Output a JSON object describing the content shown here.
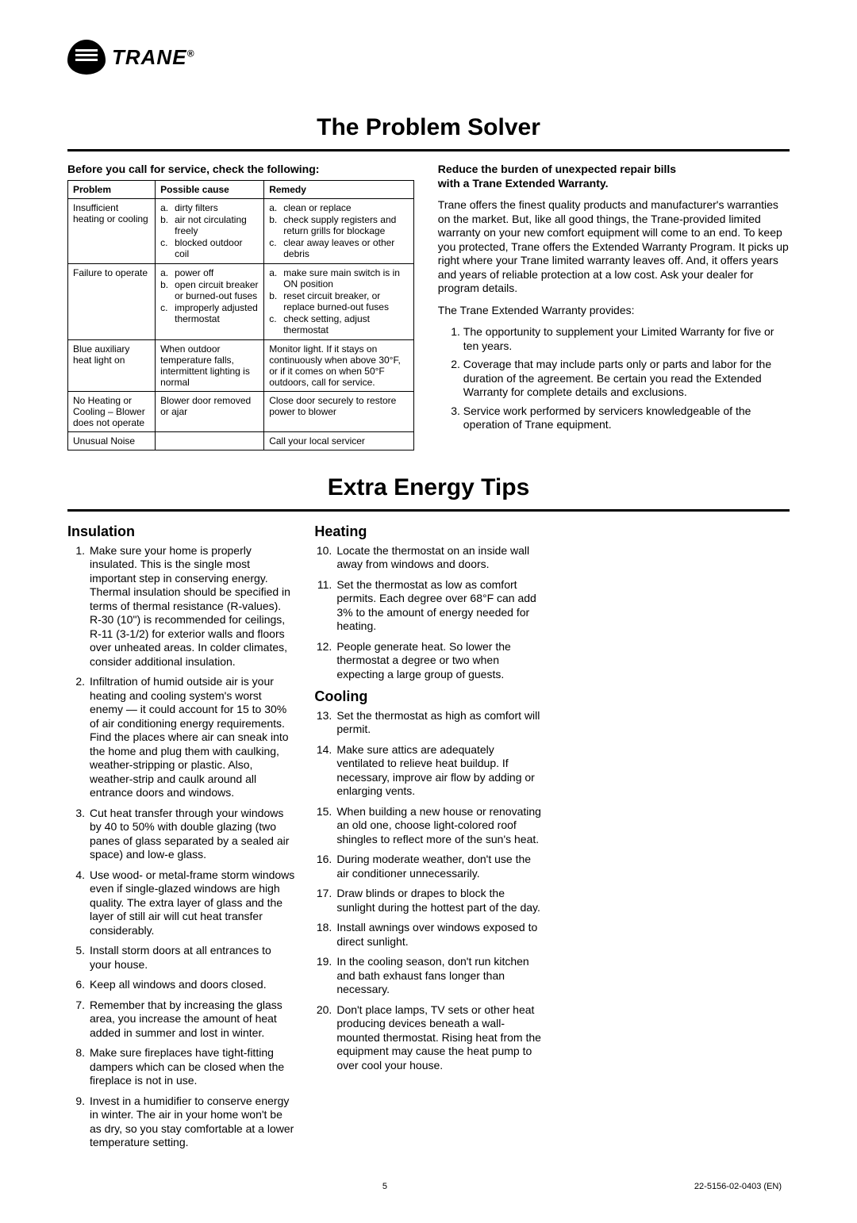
{
  "logo": {
    "brand": "TRANE",
    "reg": "®"
  },
  "section1_title": "The Problem Solver",
  "left_heading": "Before you call for service, check the following:",
  "table": {
    "headers": [
      "Problem",
      "Possible cause",
      "Remedy"
    ],
    "rows": [
      {
        "problem": "Insufficient heating or cooling",
        "cause": [
          [
            "a.",
            "dirty filters"
          ],
          [
            "b.",
            "air not circulating freely"
          ],
          [
            "c.",
            "blocked outdoor coil"
          ]
        ],
        "remedy": [
          [
            "a.",
            "clean or replace"
          ],
          [
            "b.",
            "check supply registers and return grills for blockage"
          ],
          [
            "c.",
            "clear away leaves or other debris"
          ]
        ]
      },
      {
        "problem": "Failure to operate",
        "cause": [
          [
            "a.",
            "power off"
          ],
          [
            "b.",
            "open circuit breaker or burned-out fuses"
          ],
          [
            "c.",
            "improperly adjusted thermostat"
          ]
        ],
        "remedy": [
          [
            "a.",
            "make sure main switch is in ON position"
          ],
          [
            "b.",
            "reset circuit breaker, or replace burned-out fuses"
          ],
          [
            "c.",
            "check setting, adjust thermostat"
          ]
        ]
      },
      {
        "problem": "Blue auxiliary heat light on",
        "cause_plain": "When outdoor temperature falls, intermittent lighting is normal",
        "remedy_plain": "Monitor light. If it stays on continuously when above 30°F, or if it comes on when 50°F outdoors, call for service."
      },
      {
        "problem": "No Heating or Cooling – Blower does not operate",
        "cause_plain": "Blower door removed or ajar",
        "remedy_plain": "Close door securely to restore power to blower"
      },
      {
        "problem": "Unusual Noise",
        "cause_plain": "",
        "remedy_plain": "Call your local servicer"
      }
    ]
  },
  "right_heading1": "Reduce the burden of unexpected repair bills",
  "right_heading2": "with a Trane Extended Warranty.",
  "warranty_p1": "Trane offers the finest quality products and manufacturer's warranties on the market. But, like all good things, the Trane-provided limited warranty on your new comfort equipment will come to an end. To keep you protected, Trane offers the Extended Warranty Program. It picks up right where your Trane limited warranty leaves off. And, it offers years and years of reliable protection at a low cost. Ask your dealer for program details.",
  "warranty_p2": "The Trane Extended Warranty provides:",
  "warranty_list": [
    "The opportunity to supplement your Limited Warranty for five or ten years.",
    "Coverage that may include parts only or parts and labor for the duration of the agreement. Be certain you read the Extended Warranty for complete details and exclusions.",
    "Service work performed by servicers knowledgeable of the operation of Trane equipment."
  ],
  "section2_title": "Extra Energy Tips",
  "tips": {
    "insulation_h": "Insulation",
    "heating_h": "Heating",
    "cooling_h": "Cooling",
    "items": [
      [
        1,
        "Make sure your home is properly insulated. This is the single most important step in conserving energy. Thermal insulation should be specified in terms of thermal resistance (R-values). R-30 (10\") is recommended for ceilings, R-11 (3-1/2) for exterior walls and floors over unheated areas. In colder climates, consider additional insulation."
      ],
      [
        2,
        "Infiltration of humid outside air is your heating and cooling system's worst enemy — it could account for 15 to 30% of air conditioning energy requirements. Find the places where air can sneak into the home and plug them with caulking, weather-stripping or plastic. Also, weather-strip and caulk around all entrance doors and windows."
      ],
      [
        3,
        "Cut heat transfer through your windows by 40 to 50% with double glazing (two panes of glass separated by a sealed air space) and low-e glass."
      ],
      [
        4,
        "Use wood- or metal-frame storm windows even if single-glazed windows are high quality. The extra layer of glass and the layer of still air will cut heat transfer considerably."
      ],
      [
        5,
        "Install storm doors at all entrances to your house."
      ],
      [
        6,
        "Keep all windows and doors closed."
      ],
      [
        7,
        "Remember that by increasing the glass area, you increase the amount of heat added in summer and lost in winter."
      ],
      [
        8,
        "Make sure fireplaces have tight-fitting dampers which can be closed when the fireplace is not in use."
      ],
      [
        9,
        "Invest in a humidifier to conserve energy in winter. The air in your home won't be as dry, so you stay comfortable at a lower temperature setting."
      ],
      [
        10,
        "Locate the thermostat on an inside wall away from windows and doors."
      ],
      [
        11,
        "Set the thermostat as low as comfort permits. Each degree over 68°F can add 3% to the amount of energy needed for heating."
      ],
      [
        12,
        "People generate heat. So lower the thermostat a degree or two when expecting a large group of guests."
      ],
      [
        13,
        "Set the thermostat as high as comfort will permit."
      ],
      [
        14,
        "Make sure attics are adequately ventilated to relieve heat buildup. If necessary, improve air flow by adding or enlarging vents."
      ],
      [
        15,
        "When building a new house or renovating an old one, choose light-colored roof shingles to reflect more of the sun's heat."
      ],
      [
        16,
        "During moderate weather, don't use the air conditioner unnecessarily."
      ],
      [
        17,
        "Draw blinds or drapes to block the sunlight during the hottest part of the day."
      ],
      [
        18,
        "Install awnings over windows exposed to direct sunlight."
      ],
      [
        19,
        "In the cooling season, don't run kitchen and bath exhaust fans longer than necessary."
      ],
      [
        20,
        "Don't place lamps, TV sets or other heat producing devices beneath a wall-mounted thermostat. Rising heat from the equipment may cause the heat pump to over cool your house."
      ]
    ]
  },
  "footer": {
    "page": "5",
    "doc": "22-5156-02-0403   (EN)"
  }
}
